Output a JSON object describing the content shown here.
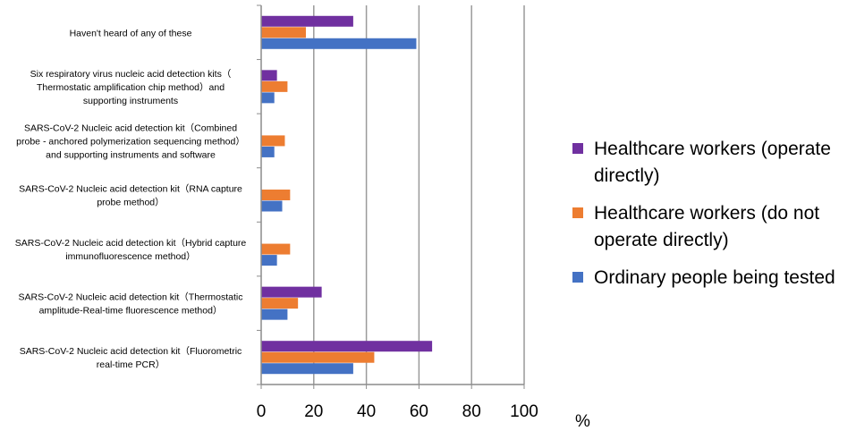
{
  "chart_data": {
    "type": "bar",
    "orientation": "horizontal",
    "categories": [
      [
        "Haven't heard of any of these"
      ],
      [
        "Six respiratory virus nucleic acid detection kits（",
        "Thermostatic amplification chip method）and",
        "supporting instruments"
      ],
      [
        "SARS-CoV-2 Nucleic acid detection kit（Combined",
        "probe - anchored polymerization sequencing method）",
        "and supporting instruments and software"
      ],
      [
        "SARS-CoV-2 Nucleic acid detection kit（RNA capture",
        "probe method）"
      ],
      [
        "SARS-CoV-2 Nucleic acid detection kit（Hybrid capture",
        "immunofluorescence method）"
      ],
      [
        "SARS-CoV-2 Nucleic acid detection kit（Thermostatic",
        "amplitude-Real-time fluorescence method）"
      ],
      [
        "SARS-CoV-2 Nucleic acid detection kit（Fluorometric",
        "real-time PCR）"
      ]
    ],
    "series": [
      {
        "name": "Healthcare workers (operate directly)",
        "color": "#7030A0",
        "values": [
          35,
          6,
          0,
          0,
          0,
          23,
          65
        ]
      },
      {
        "name": "Healthcare workers (do not operate directly)",
        "color": "#ED7D31",
        "values": [
          17,
          10,
          9,
          11,
          11,
          14,
          43
        ]
      },
      {
        "name": "Ordinary people being tested",
        "color": "#4472C4",
        "values": [
          59,
          5,
          5,
          8,
          6,
          10,
          35
        ]
      }
    ],
    "xlim": [
      0,
      100
    ],
    "xticks": [
      0,
      20,
      40,
      60,
      80,
      100
    ],
    "xlabel": "%",
    "grid": true,
    "legend_position": "right"
  }
}
